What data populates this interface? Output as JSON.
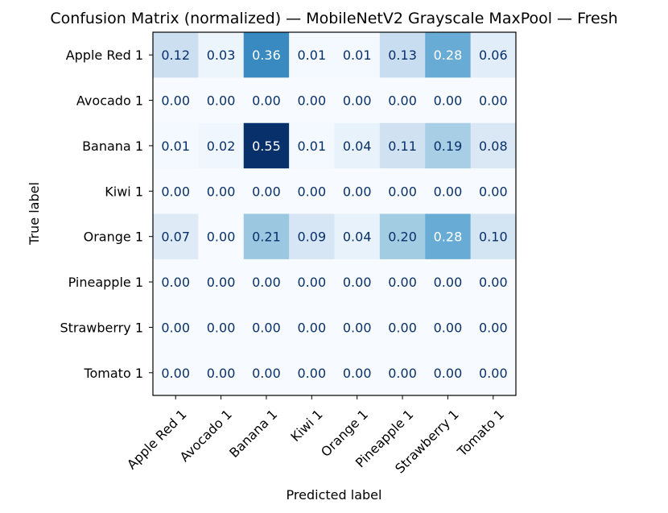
{
  "chart_data": {
    "type": "heatmap",
    "title": "Confusion Matrix (normalized) — MobileNetV2 Grayscale MaxPool — Fresh",
    "xlabel": "Predicted label",
    "ylabel": "True label",
    "x_categories": [
      "Apple Red 1",
      "Avocado 1",
      "Banana 1",
      "Kiwi 1",
      "Orange 1",
      "Pineapple 1",
      "Strawberry 1",
      "Tomato 1"
    ],
    "y_categories": [
      "Apple Red 1",
      "Avocado 1",
      "Banana 1",
      "Kiwi 1",
      "Orange 1",
      "Pineapple 1",
      "Strawberry 1",
      "Tomato 1"
    ],
    "values": [
      [
        0.12,
        0.03,
        0.36,
        0.01,
        0.01,
        0.13,
        0.28,
        0.06
      ],
      [
        0.0,
        0.0,
        0.0,
        0.0,
        0.0,
        0.0,
        0.0,
        0.0
      ],
      [
        0.01,
        0.02,
        0.55,
        0.01,
        0.04,
        0.11,
        0.19,
        0.08
      ],
      [
        0.0,
        0.0,
        0.0,
        0.0,
        0.0,
        0.0,
        0.0,
        0.0
      ],
      [
        0.07,
        0.0,
        0.21,
        0.09,
        0.04,
        0.2,
        0.28,
        0.1
      ],
      [
        0.0,
        0.0,
        0.0,
        0.0,
        0.0,
        0.0,
        0.0,
        0.0
      ],
      [
        0.0,
        0.0,
        0.0,
        0.0,
        0.0,
        0.0,
        0.0,
        0.0
      ],
      [
        0.0,
        0.0,
        0.0,
        0.0,
        0.0,
        0.0,
        0.0,
        0.0
      ]
    ],
    "colormap": "Blues",
    "value_range": [
      0,
      0.55
    ],
    "value_format": "2 decimals",
    "grid": false,
    "colors": {
      "low": "#f7fbff",
      "high": "#08306b",
      "text_dark": "#08306b",
      "text_light": "#ffffff"
    }
  }
}
